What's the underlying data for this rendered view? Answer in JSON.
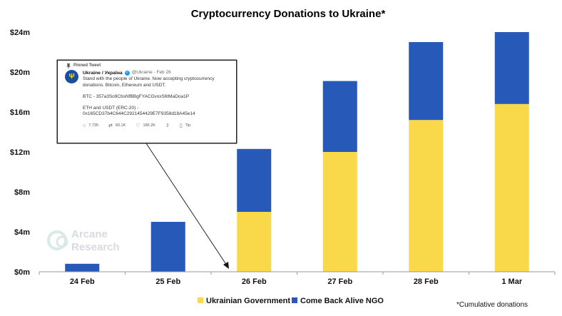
{
  "chart_data": {
    "type": "bar",
    "stacked": true,
    "title": "Cryptocurrency Donations to Ukraine*",
    "categories": [
      "24 Feb",
      "25 Feb",
      "26 Feb",
      "27 Feb",
      "28 Feb",
      "1 Mar"
    ],
    "series": [
      {
        "name": "Ukrainian Government",
        "color": "#f9d84a",
        "values": [
          0,
          0,
          6.0,
          12.0,
          15.2,
          16.8
        ]
      },
      {
        "name": "Come Back Alive NGO",
        "color": "#2759b8",
        "values": [
          0.8,
          5.0,
          6.3,
          7.1,
          7.8,
          7.2
        ]
      }
    ],
    "ylim": [
      0,
      24
    ],
    "yticks": [
      "$0m",
      "$4m",
      "$8m",
      "$12m",
      "$16m",
      "$20m",
      "$24m"
    ],
    "xlabel": "",
    "ylabel": "",
    "grid": false,
    "legend_position": "bottom",
    "footnote": "*Cumulative donations"
  },
  "watermark": {
    "line1": "Arcane",
    "line2": "Research"
  },
  "tweet": {
    "pinned_label": "Pinned Tweet",
    "name": "Ukraine / Україна",
    "handle": "@Ukraine · Feb 26",
    "text": "Stand with the people of Ukraine. Now accepting cryptocurrency donations. Bitcoin, Ethereum and USDT.",
    "btc": "BTC - 357a3So9CbsNfBBgFYACGvxxS6tMaDoa1P",
    "eth_label": "ETH and USDT (ERC-20) -",
    "eth_address": "0x165CD37b4C644C2921454429E7F9358d18A45e14",
    "replies": "7,735",
    "retweets": "60.1K",
    "likes": "185.2K",
    "tip": "Tip"
  }
}
